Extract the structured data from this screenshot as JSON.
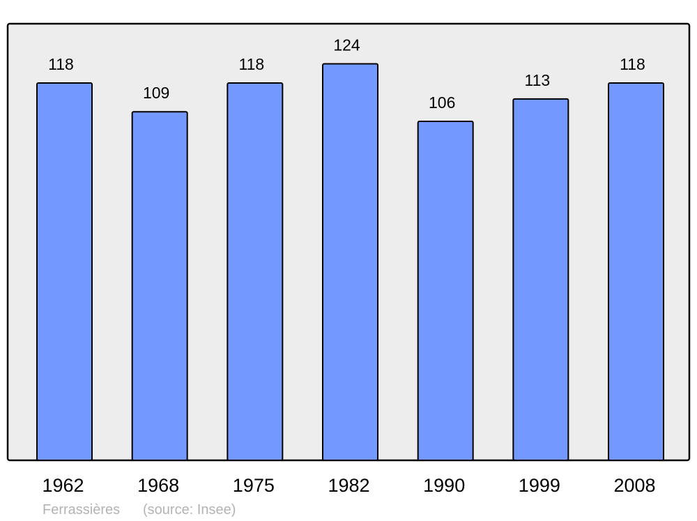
{
  "chart_data": {
    "type": "bar",
    "categories": [
      "1962",
      "1968",
      "1975",
      "1982",
      "1990",
      "1999",
      "2008"
    ],
    "values": [
      118,
      109,
      118,
      124,
      106,
      113,
      118
    ],
    "data_labels": [
      "118",
      "109",
      "118",
      "124",
      "106",
      "113",
      "118"
    ],
    "title": "",
    "xlabel": "",
    "ylabel": "",
    "ylim": [
      0,
      136.5
    ],
    "grid": false,
    "legend": "none",
    "colors": {
      "bar": "#7399ff",
      "background": "#ededed",
      "border": "#000000",
      "footer_text": "#b3b3b3"
    }
  },
  "footer": {
    "place": "Ferrassières",
    "source": "(source: Insee)"
  }
}
